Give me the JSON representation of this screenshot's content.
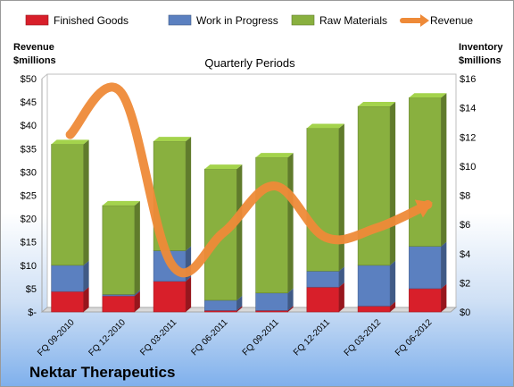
{
  "company": "Nektar Therapeutics",
  "chart_data": {
    "type": "bar",
    "title": "Quarterly Periods",
    "left_axis_label": [
      "Revenue",
      "$millions"
    ],
    "right_axis_label": [
      "Inventory",
      "$millions"
    ],
    "categories": [
      "FQ 09-2010",
      "FQ 12-2010",
      "FQ 03-2011",
      "FQ 06-2011",
      "FQ 09-2011",
      "FQ 12-2011",
      "FQ 03-2012",
      "FQ 06-2012"
    ],
    "left_ticks": [
      "$-",
      "$5",
      "$10",
      "$15",
      "$20",
      "$25",
      "$30",
      "$35",
      "$40",
      "$45",
      "$50"
    ],
    "right_ticks": [
      "$0",
      "$2",
      "$4",
      "$6",
      "$8",
      "$10",
      "$12",
      "$14",
      "$16"
    ],
    "left_ylim": [
      0,
      50
    ],
    "right_ylim": [
      0,
      16
    ],
    "legend_position": "top",
    "series": [
      {
        "name": "Finished Goods",
        "type": "stacked-bar",
        "axis": "right",
        "color": "#d81f2a",
        "values": [
          1.4,
          1.1,
          2.1,
          0.1,
          0.1,
          1.7,
          0.4,
          1.6
        ]
      },
      {
        "name": "Work in Progress",
        "type": "stacked-bar",
        "axis": "right",
        "color": "#5b80c0",
        "values": [
          1.8,
          0.1,
          2.1,
          0.7,
          1.2,
          1.1,
          2.8,
          2.9
        ]
      },
      {
        "name": "Raw Materials",
        "type": "stacked-bar",
        "axis": "right",
        "color": "#89b03f",
        "values": [
          8.3,
          6.1,
          7.5,
          9.0,
          9.3,
          9.8,
          10.9,
          10.2
        ]
      },
      {
        "name": "Revenue",
        "type": "line",
        "axis": "left",
        "color": "#ee8a38",
        "values": [
          38,
          47,
          10,
          17,
          27,
          16,
          18,
          23
        ]
      }
    ]
  }
}
